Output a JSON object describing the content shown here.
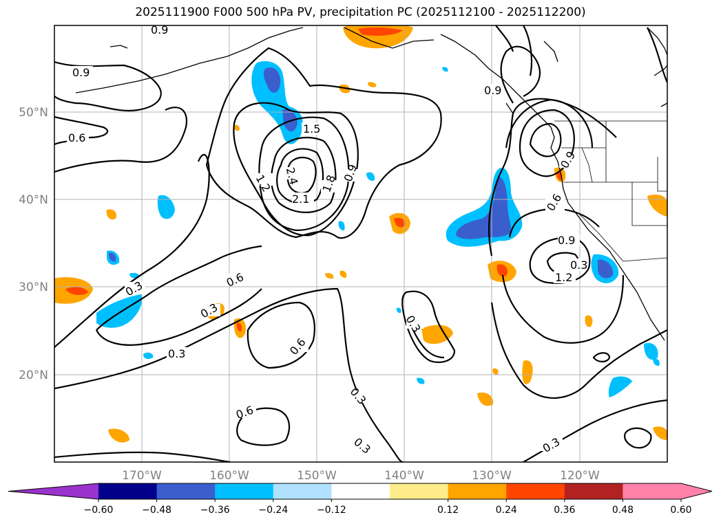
{
  "title": "2025111900 F000 500 hPa PV, precipitation PC (2025112100 - 2025112200)",
  "lat_labels": [
    "50°N",
    "40°N",
    "30°N",
    "20°N"
  ],
  "lon_labels": [
    "170°W",
    "160°W",
    "150°W",
    "140°W",
    "130°W",
    "120°W"
  ],
  "colorbar": {
    "ticks": [
      "−0.60",
      "−0.48",
      "−0.36",
      "−0.24",
      "−0.12",
      "0.12",
      "0.24",
      "0.36",
      "0.48",
      "0.60"
    ],
    "colors": [
      "#9a32cd",
      "#00008b",
      "#3a5fcd",
      "#00bfff",
      "#b0e2ff",
      "#ffffff",
      "#ffec8b",
      "#ffa500",
      "#ff4500",
      "#b22222",
      "#ff82ab",
      "#ff82ab"
    ]
  },
  "contour_labels": [
    "0.9",
    "0.9",
    "0.6",
    "1.5",
    "1.2",
    "2.4",
    "2.1",
    "1.8",
    "0.9",
    "0.9",
    "0.9",
    "0.6",
    "0.9",
    "1.2",
    "0.3",
    "0.6",
    "0.3",
    "0.3",
    "0.6",
    "0.3",
    "0.6",
    "0.3",
    "0.3",
    "0.3",
    "0.3"
  ]
}
